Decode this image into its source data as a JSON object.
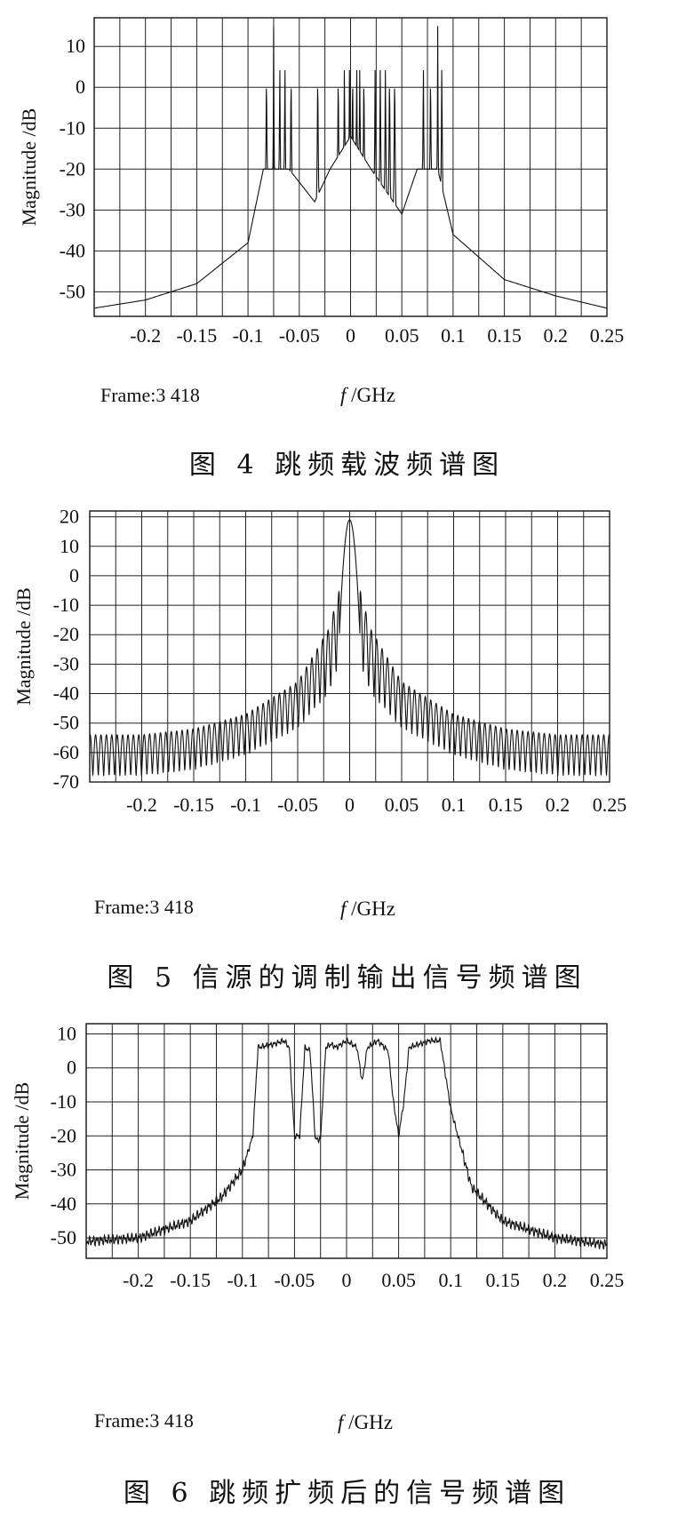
{
  "chart_data": [
    {
      "type": "line",
      "caption": "图 4   跳频载波频谱图",
      "frame_label": "Frame:3 418",
      "xlabel": "f /GHz",
      "ylabel": "Magnitude /dB",
      "xlim": [
        -0.25,
        0.25
      ],
      "ylim": [
        -56,
        17
      ],
      "xticks": [
        -0.2,
        -0.15,
        -0.1,
        -0.05,
        0,
        0.05,
        0.1,
        0.15,
        0.2,
        0.25
      ],
      "xtick_labels": [
        "-0.2",
        "-0.15",
        "-0.1",
        "-0.05",
        "0",
        "0.05",
        "0.1",
        "0.15",
        "0.2",
        "0.25"
      ],
      "yticks": [
        10,
        0,
        -10,
        -20,
        -30,
        -40,
        -50
      ],
      "ytick_labels": [
        "10",
        "0",
        "-10",
        "-20",
        "-30",
        "-40",
        "-50"
      ],
      "grid": true,
      "series": [
        {
          "carrier_frequencies_GHz": [
            -0.082,
            -0.075,
            -0.069,
            -0.064,
            -0.058,
            -0.032,
            -0.012,
            -0.006,
            -0.001,
            0.002,
            0.006,
            0.009,
            0.013,
            0.024,
            0.029,
            0.034,
            0.038,
            0.043,
            0.071,
            0.078,
            0.085,
            0.089
          ],
          "peak_level_dB": 15,
          "x": [
            -0.25,
            -0.2,
            -0.15,
            -0.1,
            -0.085,
            -0.06,
            -0.035,
            -0.02,
            0,
            0.02,
            0.05,
            0.065,
            0.085,
            0.1,
            0.15,
            0.2,
            0.25
          ],
          "y": [
            -54,
            -52,
            -48,
            -38,
            -20,
            -20,
            -28,
            -20,
            -12,
            -20,
            -31,
            -20,
            -20,
            -36,
            -47,
            -51,
            -54
          ]
        }
      ]
    },
    {
      "type": "line",
      "caption": "图 5   信源的调制输出信号频谱图",
      "frame_label": "Frame:3 418",
      "xlabel": "f /GHz",
      "ylabel": "Magnitude /dB",
      "xlim": [
        -0.25,
        0.25
      ],
      "ylim": [
        -70,
        22
      ],
      "xticks": [
        -0.2,
        -0.15,
        -0.1,
        -0.05,
        0,
        0.05,
        0.1,
        0.15,
        0.2,
        0.25
      ],
      "xtick_labels": [
        "-0.2",
        "-0.15",
        "-0.1",
        "-0.05",
        "0",
        "0.05",
        "0.1",
        "0.15",
        "0.2",
        "0.25"
      ],
      "yticks": [
        20,
        10,
        0,
        -10,
        -20,
        -30,
        -40,
        -50,
        -60,
        -70
      ],
      "ytick_labels": [
        "20",
        "10",
        "0",
        "-10",
        "-20",
        "-30",
        "-40",
        "-50",
        "-60",
        "-70"
      ],
      "grid": true,
      "series": [
        {
          "main_lobe_peak_dB": 19,
          "main_lobe_half_width_GHz": 0.01,
          "first_sidelobe_dB": -5,
          "envelope_x": [
            -0.25,
            -0.2,
            -0.15,
            -0.1,
            -0.05,
            -0.02,
            -0.01,
            0,
            0.01,
            0.02,
            0.05,
            0.1,
            0.15,
            0.2,
            0.25
          ],
          "envelope_upper_dB": [
            -54,
            -54,
            -52,
            -47,
            -36,
            -18,
            -5,
            19,
            -5,
            -18,
            -36,
            -47,
            -52,
            -54,
            -54
          ],
          "envelope_lower_dB": [
            -68,
            -68,
            -66,
            -61,
            -52,
            -40,
            -30,
            19,
            -30,
            -40,
            -52,
            -61,
            -66,
            -68,
            -68
          ]
        }
      ]
    },
    {
      "type": "line",
      "caption": "图 6   跳频扩频后的信号频谱图",
      "frame_label": "Frame:3 418",
      "xlabel": "f /GHz",
      "ylabel": "Magnitude /dB",
      "xlim": [
        -0.25,
        0.25
      ],
      "ylim": [
        -56,
        13
      ],
      "xticks": [
        -0.2,
        -0.15,
        -0.1,
        -0.05,
        0,
        0.05,
        0.1,
        0.15,
        0.2,
        0.25
      ],
      "xtick_labels": [
        "-0.2",
        "-0.15",
        "-0.1",
        "-0.05",
        "0",
        "0.05",
        "0.1",
        "0.15",
        "0.2",
        "0.25"
      ],
      "yticks": [
        10,
        0,
        -10,
        -20,
        -30,
        -40,
        -50
      ],
      "ytick_labels": [
        "10",
        "0",
        "-10",
        "-20",
        "-30",
        "-40",
        "-50"
      ],
      "grid": true,
      "series": [
        {
          "x": [
            -0.25,
            -0.2,
            -0.15,
            -0.12,
            -0.1,
            -0.09,
            -0.085,
            -0.07,
            -0.06,
            -0.055,
            -0.05,
            -0.045,
            -0.04,
            -0.035,
            -0.03,
            -0.025,
            -0.02,
            -0.015,
            -0.01,
            0,
            0.01,
            0.015,
            0.02,
            0.03,
            0.04,
            0.045,
            0.05,
            0.055,
            0.06,
            0.07,
            0.08,
            0.09,
            0.1,
            0.12,
            0.15,
            0.2,
            0.25
          ],
          "y": [
            -51,
            -50,
            -45,
            -38,
            -30,
            -20,
            6,
            7,
            8,
            6,
            -20,
            -20,
            6,
            5,
            -21,
            -21,
            6,
            7,
            6,
            8,
            6,
            -4,
            6,
            8,
            5,
            -10,
            -20,
            -10,
            6,
            7,
            8,
            8,
            -12,
            -35,
            -45,
            -50,
            -52
          ]
        }
      ]
    }
  ]
}
